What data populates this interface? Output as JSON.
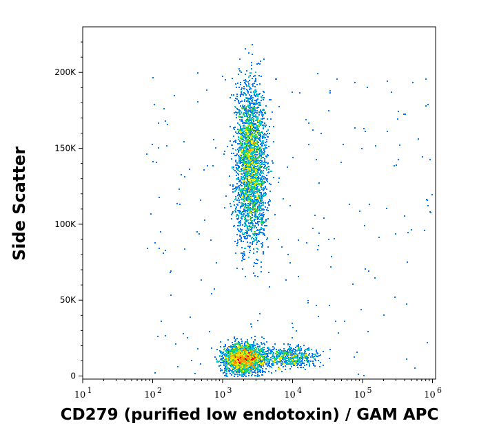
{
  "chart_data": {
    "type": "scatter",
    "style": "density-colored flow cytometry dot plot",
    "xlabel": "CD279 (purified low endotoxin) / GAM APC",
    "ylabel": "Side Scatter",
    "x_scale": "log",
    "xlim": [
      10,
      10000000
    ],
    "ylim": [
      -2000,
      230000
    ],
    "x_ticks": [
      {
        "value": 10,
        "base": "10",
        "exp": "1"
      },
      {
        "value": 100,
        "base": "10",
        "exp": "2"
      },
      {
        "value": 1000,
        "base": "10",
        "exp": "3"
      },
      {
        "value": 10000,
        "base": "10",
        "exp": "4"
      },
      {
        "value": 100000,
        "base": "10",
        "exp": "5"
      },
      {
        "value": 1000000,
        "base": "10",
        "exp": "6"
      }
    ],
    "y_ticks": [
      {
        "value": 0,
        "label": "0"
      },
      {
        "value": 50000,
        "label": "50K"
      },
      {
        "value": 100000,
        "label": "100K"
      },
      {
        "value": 150000,
        "label": "150K"
      },
      {
        "value": 200000,
        "label": "200K"
      }
    ],
    "populations": [
      {
        "name": "",
        "x_center": 2500,
        "x_spread_decades": 0.16,
        "y_center": 140000,
        "y_sd": 38000,
        "density": "high"
      },
      {
        "name": "",
        "x_center": 2000,
        "x_spread_decades": 0.22,
        "y_center": 12000,
        "y_sd": 7000,
        "density": "peak"
      },
      {
        "name": "",
        "x_center": 9000,
        "x_spread_decades": 0.3,
        "y_center": 13000,
        "y_sd": 5000,
        "density": "medium"
      }
    ],
    "density_colors": [
      "#0000cc",
      "#0077ff",
      "#00c8c8",
      "#3dd83d",
      "#e8e800",
      "#ff9900",
      "#ff0000"
    ],
    "grid": false,
    "legend": "none"
  }
}
